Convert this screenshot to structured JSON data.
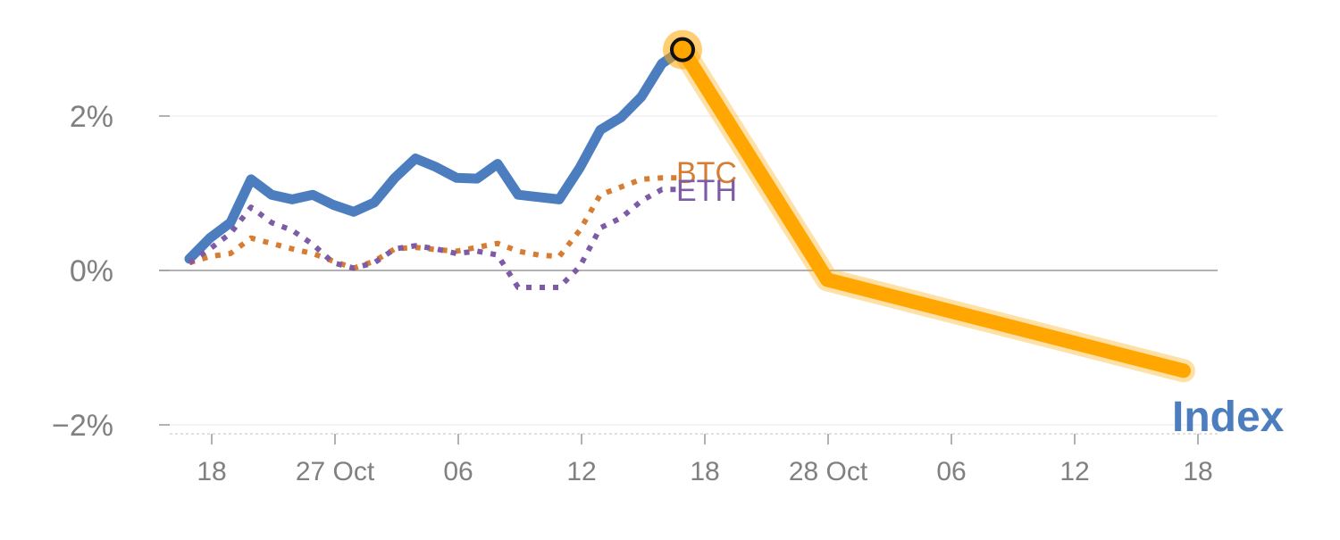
{
  "chart_data": {
    "type": "line",
    "x_tick_labels": [
      "18",
      "27 Oct",
      "06",
      "12",
      "18",
      "28 Oct",
      "06",
      "12",
      "18"
    ],
    "y_tick_labels": [
      "2%",
      "0%",
      "−2%"
    ],
    "ylim": [
      -2.1,
      3.2
    ],
    "grid": "horizontal",
    "series": [
      {
        "name": "Index",
        "style": "solid",
        "color": "#4c7ebf",
        "values": [
          0.15,
          0.42,
          0.62,
          1.18,
          0.98,
          0.92,
          0.98,
          0.85,
          0.76,
          0.88,
          1.2,
          1.45,
          1.34,
          1.2,
          1.19,
          1.38,
          0.98,
          0.95,
          0.92,
          1.33,
          1.82,
          1.98,
          2.25,
          2.68,
          2.86
        ]
      },
      {
        "name": "BTC",
        "style": "dotted",
        "color": "#d67d33",
        "values": [
          0.1,
          0.18,
          0.22,
          0.42,
          0.35,
          0.28,
          0.22,
          0.12,
          0.03,
          0.12,
          0.28,
          0.3,
          0.27,
          0.25,
          0.3,
          0.35,
          0.25,
          0.2,
          0.18,
          0.52,
          0.98,
          1.08,
          1.18,
          1.2,
          1.2
        ]
      },
      {
        "name": "ETH",
        "style": "dotted",
        "color": "#7d5ba6",
        "values": [
          0.1,
          0.28,
          0.48,
          0.82,
          0.62,
          0.52,
          0.34,
          0.1,
          0.03,
          0.1,
          0.28,
          0.32,
          0.28,
          0.22,
          0.25,
          0.2,
          -0.22,
          -0.22,
          -0.22,
          0.05,
          0.55,
          0.68,
          0.9,
          1.05,
          1.05
        ]
      }
    ],
    "highlight": {
      "color": "#ffa600",
      "values": [
        2.86,
        -0.12,
        -1.3
      ]
    },
    "labels": {
      "index": "Index",
      "btc": "BTC",
      "eth": "ETH"
    },
    "colors": {
      "grid": "#e8e8e8",
      "zero_line": "#999999",
      "tick_text": "#808080",
      "marker_fill": "#ffa600",
      "marker_ring": "#111111"
    }
  }
}
